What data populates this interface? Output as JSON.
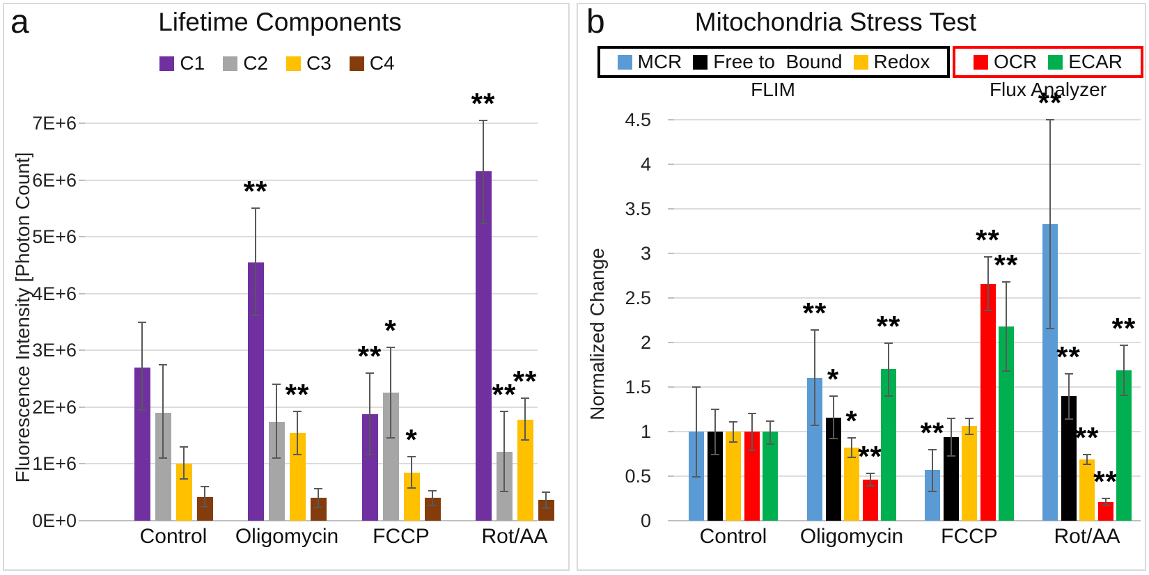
{
  "panel_a": {
    "corner_label": "a",
    "title": "Lifetime Components",
    "y_axis_title": "Fluorescence Intensity [Photon Count]",
    "chart_data": {
      "type": "bar",
      "title": "Lifetime Components",
      "ylabel": "Fluorescence Intensity [Photon Count]",
      "xlabel": "",
      "categories": [
        "Control",
        "Oligomycin",
        "FCCP",
        "Rot/AA"
      ],
      "ylim": [
        0,
        7000000
      ],
      "ytick_step": 1000000,
      "ytick_labels": [
        "0E+0",
        "1E+6",
        "2E+6",
        "3E+6",
        "4E+6",
        "5E+6",
        "6E+6",
        "7E+6"
      ],
      "grid": true,
      "legend_position": "top",
      "error_bars": true,
      "significance_note": "asterisks above bars mark significant changes",
      "series": [
        {
          "name": "C1",
          "color": "#7030A0",
          "values": [
            2700000,
            4550000,
            1880000,
            6150000
          ],
          "err_high": [
            3500000,
            5500000,
            2600000,
            7050000
          ],
          "err_low": [
            1950000,
            3620000,
            1160000,
            5230000
          ],
          "sig": [
            "",
            "**",
            "**",
            "**"
          ]
        },
        {
          "name": "C2",
          "color": "#A6A6A6",
          "values": [
            1900000,
            1740000,
            2250000,
            1210000
          ],
          "err_high": [
            2750000,
            2400000,
            3050000,
            1920000
          ],
          "err_low": [
            1100000,
            1100000,
            1460000,
            510000
          ],
          "sig": [
            "",
            "",
            "*",
            "**"
          ]
        },
        {
          "name": "C3",
          "color": "#FFC000",
          "values": [
            1000000,
            1550000,
            850000,
            1780000
          ],
          "err_high": [
            1300000,
            1930000,
            1130000,
            2160000
          ],
          "err_low": [
            740000,
            1170000,
            580000,
            1420000
          ],
          "sig": [
            "",
            "**",
            "*",
            "**"
          ]
        },
        {
          "name": "C4",
          "color": "#843C0C",
          "values": [
            420000,
            400000,
            400000,
            370000
          ],
          "err_high": [
            600000,
            570000,
            530000,
            500000
          ],
          "err_low": [
            240000,
            230000,
            270000,
            220000
          ],
          "sig": [
            "",
            "",
            "",
            ""
          ]
        }
      ]
    }
  },
  "panel_b": {
    "corner_label": "b",
    "title": "Mitochondria Stress Test",
    "y_axis_title": "Normalized Change",
    "legend_groups": [
      {
        "name": "FLIM",
        "border_color": "#000000",
        "series_indexes": [
          0,
          1,
          2
        ]
      },
      {
        "name": "Flux Analyzer",
        "border_color": "#FF0000",
        "series_indexes": [
          3,
          4
        ]
      }
    ],
    "chart_data": {
      "type": "bar",
      "title": "Mitochondria Stress Test",
      "ylabel": "Normalized Change",
      "xlabel": "",
      "categories": [
        "Control",
        "Oligomycin",
        "FCCP",
        "Rot/AA"
      ],
      "ylim": [
        0,
        4.5
      ],
      "ytick_step": 0.5,
      "ytick_labels": [
        "0",
        "0.5",
        "1",
        "1.5",
        "2",
        "2.5",
        "3",
        "3.5",
        "4",
        "4.5"
      ],
      "grid": true,
      "legend_position": "top, grouped into FLIM (black box) and Flux Analyzer (red box)",
      "error_bars": true,
      "significance_note": "asterisks above bars mark significant changes",
      "series": [
        {
          "name": "MCR",
          "color": "#5B9BD5",
          "values": [
            1.0,
            1.6,
            0.57,
            3.33
          ],
          "err_high": [
            1.5,
            2.14,
            0.8,
            4.5
          ],
          "err_low": [
            0.49,
            1.07,
            0.33,
            2.16
          ],
          "sig": [
            "",
            "**",
            "**",
            "**"
          ]
        },
        {
          "name": "Free to  Bound",
          "color": "#000000",
          "values": [
            1.0,
            1.16,
            0.94,
            1.4
          ],
          "err_high": [
            1.25,
            1.4,
            1.15,
            1.65
          ],
          "err_low": [
            0.74,
            0.92,
            0.73,
            1.14
          ],
          "sig": [
            "",
            "*",
            "",
            "**"
          ]
        },
        {
          "name": "Redox",
          "color": "#FFC000",
          "values": [
            1.0,
            0.82,
            1.06,
            0.69
          ],
          "err_high": [
            1.11,
            0.93,
            1.15,
            0.74
          ],
          "err_low": [
            0.88,
            0.71,
            0.97,
            0.63
          ],
          "sig": [
            "",
            "*",
            "",
            "**"
          ]
        },
        {
          "name": "OCR",
          "color": "#FF0000",
          "values": [
            1.0,
            0.46,
            2.66,
            0.21
          ],
          "err_high": [
            1.2,
            0.53,
            2.96,
            0.25
          ],
          "err_low": [
            0.79,
            0.39,
            2.36,
            0.17
          ],
          "sig": [
            "",
            "**",
            "**",
            "**"
          ]
        },
        {
          "name": "ECAR",
          "color": "#00B050",
          "values": [
            1.0,
            1.7,
            2.18,
            1.69
          ],
          "err_high": [
            1.12,
            1.99,
            2.68,
            1.97
          ],
          "err_low": [
            0.86,
            1.4,
            1.68,
            1.41
          ],
          "sig": [
            "",
            "**",
            "**",
            "**"
          ]
        }
      ]
    }
  }
}
